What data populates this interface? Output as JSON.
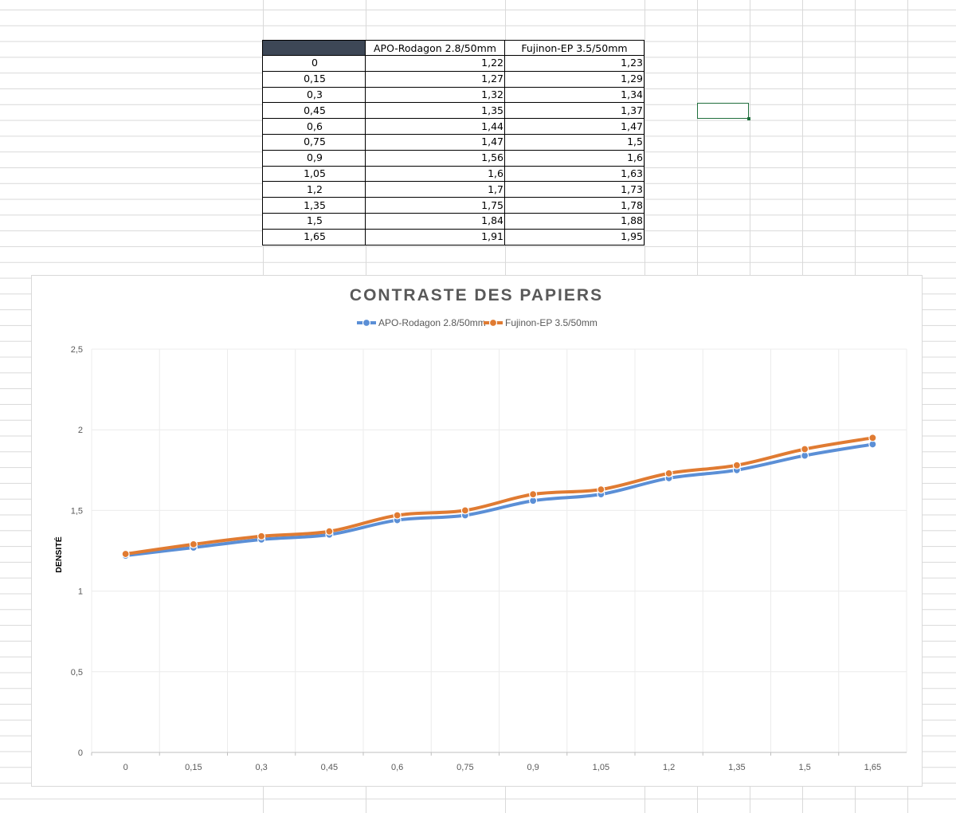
{
  "sheet": {
    "selected_cell": "empty-cell"
  },
  "table": {
    "headers": [
      "",
      "APO-Rodagon 2.8/50mm",
      "Fujinon-EP 3.5/50mm"
    ],
    "rows": [
      [
        "0",
        "1,22",
        "1,23"
      ],
      [
        "0,15",
        "1,27",
        "1,29"
      ],
      [
        "0,3",
        "1,32",
        "1,34"
      ],
      [
        "0,45",
        "1,35",
        "1,37"
      ],
      [
        "0,6",
        "1,44",
        "1,47"
      ],
      [
        "0,75",
        "1,47",
        "1,5"
      ],
      [
        "0,9",
        "1,56",
        "1,6"
      ],
      [
        "1,05",
        "1,6",
        "1,63"
      ],
      [
        "1,2",
        "1,7",
        "1,73"
      ],
      [
        "1,35",
        "1,75",
        "1,78"
      ],
      [
        "1,5",
        "1,84",
        "1,88"
      ],
      [
        "1,65",
        "1,91",
        "1,95"
      ]
    ]
  },
  "chart_data": {
    "type": "line",
    "title": "CONTRASTE DES PAPIERS",
    "xlabel": "",
    "ylabel": "DENSITÉ",
    "categories": [
      "0",
      "0,15",
      "0,3",
      "0,45",
      "0,6",
      "0,75",
      "0,9",
      "1,05",
      "1,2",
      "1,35",
      "1,5",
      "1,65"
    ],
    "series": [
      {
        "name": "APO-Rodagon 2.8/50mm",
        "color": "#5b8fd6",
        "values": [
          1.22,
          1.27,
          1.32,
          1.35,
          1.44,
          1.47,
          1.56,
          1.6,
          1.7,
          1.75,
          1.84,
          1.91
        ]
      },
      {
        "name": "Fujinon-EP 3.5/50mm",
        "color": "#e07b32",
        "values": [
          1.23,
          1.29,
          1.34,
          1.37,
          1.47,
          1.5,
          1.6,
          1.63,
          1.73,
          1.78,
          1.88,
          1.95
        ]
      }
    ],
    "ylim": [
      0,
      2.5
    ],
    "yticks": [
      "0",
      "0,5",
      "1",
      "1,5",
      "2",
      "2,5"
    ],
    "ytick_values": [
      0,
      0.5,
      1,
      1.5,
      2,
      2.5
    ],
    "grid": true,
    "legend": "top-center"
  }
}
